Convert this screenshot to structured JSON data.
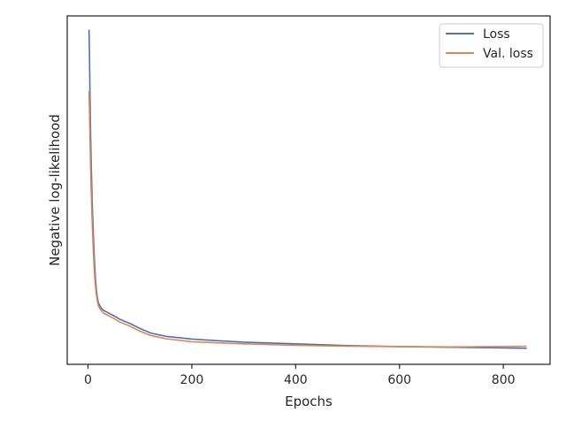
{
  "chart_data": {
    "type": "line",
    "title": "",
    "xlabel": "Epochs",
    "ylabel": "Negative log-likelihood",
    "xlim": [
      -40,
      890
    ],
    "ylim": [
      0.0,
      1.02
    ],
    "xticks": [
      0,
      200,
      400,
      600,
      800
    ],
    "xtick_labels": [
      "0",
      "200",
      "400",
      "600",
      "800"
    ],
    "yticks_shown": false,
    "grid": false,
    "legend_position": "top-right",
    "series": [
      {
        "name": "Loss",
        "color": "#4c72b0",
        "x": [
          2,
          3,
          4,
          5,
          6,
          8,
          10,
          12,
          14,
          16,
          18,
          20,
          25,
          30,
          40,
          50,
          60,
          80,
          100,
          120,
          150,
          200,
          250,
          300,
          400,
          500,
          600,
          700,
          800,
          845
        ],
        "y": [
          0.98,
          0.9,
          0.78,
          0.68,
          0.6,
          0.48,
          0.39,
          0.32,
          0.26,
          0.22,
          0.195,
          0.18,
          0.165,
          0.158,
          0.15,
          0.142,
          0.133,
          0.12,
          0.105,
          0.092,
          0.082,
          0.074,
          0.069,
          0.065,
          0.06,
          0.055,
          0.052,
          0.05,
          0.048,
          0.047
        ]
      },
      {
        "name": "Val. loss",
        "color": "#dd8452",
        "x": [
          2,
          3,
          4,
          5,
          6,
          8,
          10,
          12,
          14,
          16,
          18,
          20,
          25,
          30,
          40,
          50,
          60,
          80,
          100,
          120,
          150,
          200,
          250,
          300,
          400,
          500,
          600,
          700,
          800,
          845
        ],
        "y": [
          0.8,
          0.74,
          0.66,
          0.58,
          0.52,
          0.42,
          0.34,
          0.28,
          0.235,
          0.205,
          0.185,
          0.172,
          0.158,
          0.15,
          0.142,
          0.134,
          0.125,
          0.112,
          0.097,
          0.085,
          0.075,
          0.066,
          0.063,
          0.06,
          0.056,
          0.053,
          0.052,
          0.051,
          0.052,
          0.053
        ]
      }
    ]
  }
}
